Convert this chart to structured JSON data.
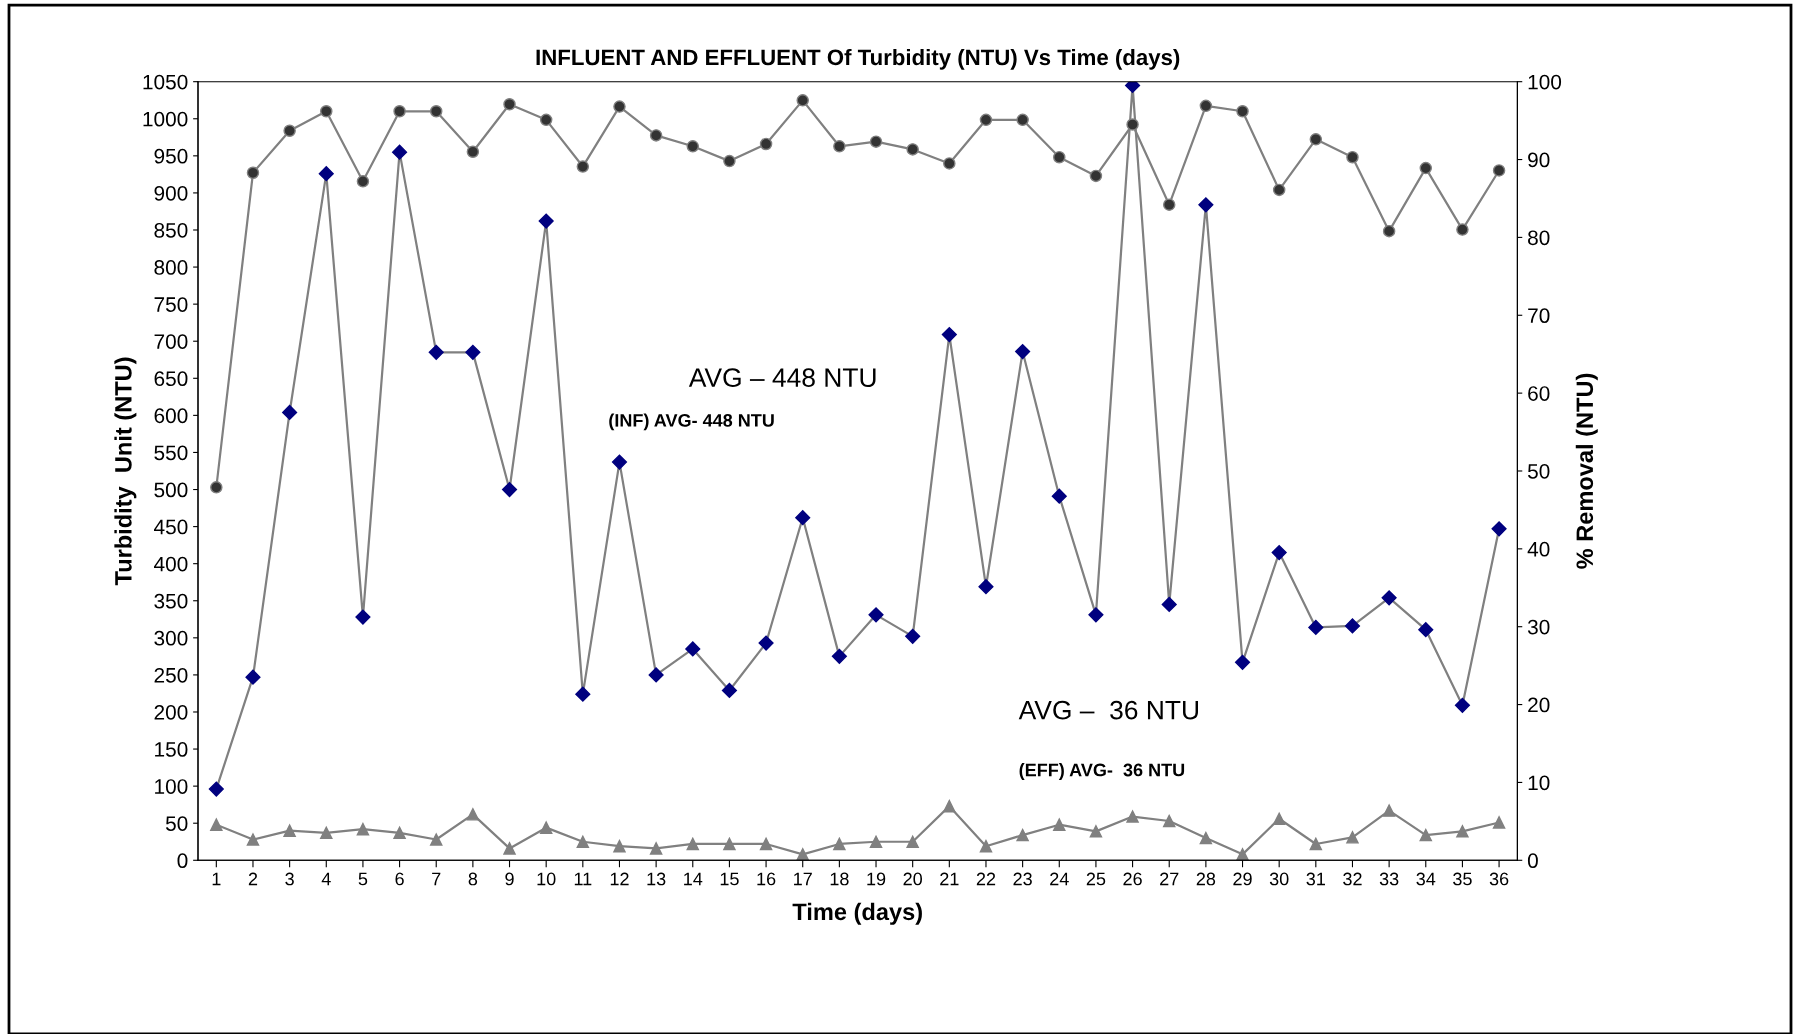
{
  "chart_data": {
    "type": "line",
    "title": "INFLUENT AND EFFLUENT Of Turbidity (NTU) Vs Time (days)",
    "xlabel": "Time (days)",
    "ylabel": "Turbidity  Unit (NTU)",
    "y2label": "% Removal (NTU)",
    "categories": [
      "1",
      "2",
      "3",
      "4",
      "5",
      "6",
      "7",
      "8",
      "9",
      "10",
      "11",
      "12",
      "13",
      "14",
      "15",
      "16",
      "17",
      "18",
      "19",
      "20",
      "21",
      "22",
      "23",
      "24",
      "25",
      "26",
      "27",
      "28",
      "29",
      "30",
      "31",
      "32",
      "33",
      "34",
      "35",
      "36"
    ],
    "series": [
      {
        "color": "#00007f",
        "marker": "diamond",
        "values": [
          96,
          247,
          604,
          926,
          328,
          955,
          685,
          685,
          500,
          862,
          224,
          537,
          250,
          285,
          229,
          293,
          462,
          275,
          331,
          302,
          709,
          369,
          686,
          491,
          331,
          1045,
          345,
          884,
          267,
          415,
          314,
          316,
          354,
          311,
          209,
          447
        ]
      },
      {
        "color": "#808080",
        "marker": "triangle",
        "values": [
          48,
          28,
          40,
          37,
          42,
          37,
          28,
          62,
          16,
          44,
          25,
          19,
          16,
          22,
          22,
          22,
          8,
          22,
          25,
          25,
          73,
          19,
          34,
          48,
          39,
          59,
          53,
          30,
          8,
          56,
          22,
          31,
          67,
          34,
          39,
          51
        ]
      },
      {
        "color": "#333333",
        "marker": "circle",
        "axis": "y2",
        "values": [
          47.9,
          88.3,
          93.7,
          96.2,
          87.2,
          96.2,
          96.2,
          91.0,
          97.1,
          95.1,
          89.1,
          96.8,
          93.1,
          91.7,
          89.8,
          92.0,
          97.6,
          91.7,
          92.3,
          91.3,
          89.5,
          95.1,
          95.1,
          90.3,
          87.9,
          94.5,
          84.2,
          96.9,
          96.2,
          86.1,
          92.6,
          90.3,
          80.8,
          88.9,
          81.0,
          88.6
        ]
      }
    ],
    "ylim": [
      0,
      1050
    ],
    "yticks": [
      0,
      50,
      100,
      150,
      200,
      250,
      300,
      350,
      400,
      450,
      500,
      550,
      600,
      650,
      700,
      750,
      800,
      850,
      900,
      950,
      1000,
      1050
    ],
    "y2lim": [
      0,
      100
    ],
    "y2ticks": [
      0,
      10,
      20,
      30,
      40,
      50,
      60,
      70,
      80,
      90,
      100
    ],
    "annotations": [
      "AVG – 448 NTU",
      "(INF) AVG- 448 NTU",
      "AVG –  36 NTU",
      "(EFF) AVG-  36 NTU"
    ],
    "grid": false,
    "legend": false,
    "line_style": "solid"
  }
}
